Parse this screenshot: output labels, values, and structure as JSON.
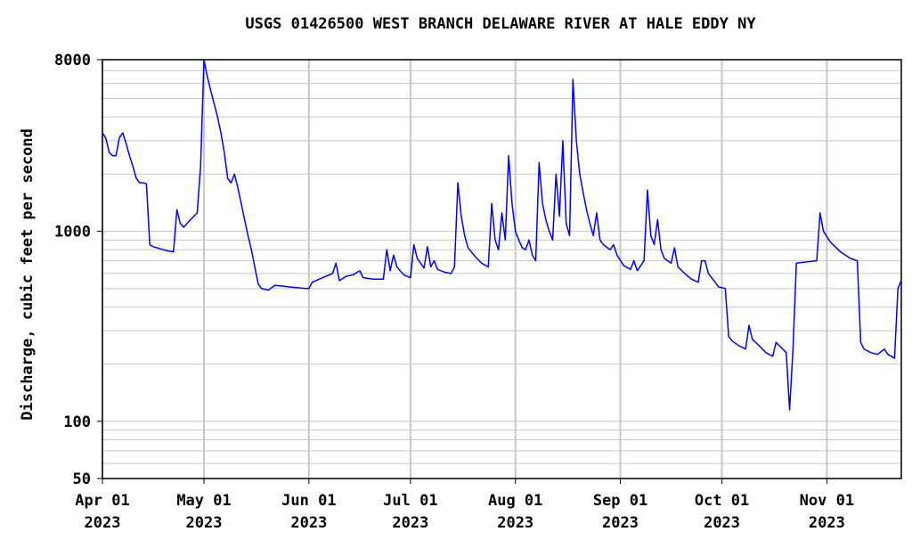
{
  "chart_data": {
    "type": "line",
    "title": "USGS 01426500 WEST BRANCH DELAWARE RIVER AT HALE EDDY NY",
    "y_label": "Discharge, cubic feet per second",
    "log_y": true,
    "grid": true,
    "ylim": [
      50,
      8000
    ],
    "yticks": [
      50,
      100,
      1000,
      8000
    ],
    "y_minor_ticks": [
      60,
      70,
      80,
      90,
      200,
      300,
      400,
      500,
      600,
      700,
      800,
      900,
      2000,
      3000,
      4000,
      5000,
      6000,
      7000
    ],
    "xlim": [
      "2023-04-01",
      "2023-11-23"
    ],
    "xticks": [
      {
        "value": "2023-04-01",
        "label": [
          "Apr 01",
          "2023"
        ]
      },
      {
        "value": "2023-05-01",
        "label": [
          "May 01",
          "2023"
        ]
      },
      {
        "value": "2023-06-01",
        "label": [
          "Jun 01",
          "2023"
        ]
      },
      {
        "value": "2023-07-01",
        "label": [
          "Jul 01",
          "2023"
        ]
      },
      {
        "value": "2023-08-01",
        "label": [
          "Aug 01",
          "2023"
        ]
      },
      {
        "value": "2023-09-01",
        "label": [
          "Sep 01",
          "2023"
        ]
      },
      {
        "value": "2023-10-01",
        "label": [
          "Oct 01",
          "2023"
        ]
      },
      {
        "value": "2023-11-01",
        "label": [
          "Nov 01",
          "2023"
        ]
      }
    ],
    "x": [
      "2023-04-01",
      "2023-04-02",
      "2023-04-03",
      "2023-04-04",
      "2023-04-05",
      "2023-04-06",
      "2023-04-07",
      "2023-04-08",
      "2023-04-09",
      "2023-04-10",
      "2023-04-11",
      "2023-04-12",
      "2023-04-13",
      "2023-04-14",
      "2023-04-15",
      "2023-04-16",
      "2023-04-18",
      "2023-04-20",
      "2023-04-22",
      "2023-04-23",
      "2023-04-24",
      "2023-04-25",
      "2023-04-27",
      "2023-04-29",
      "2023-04-30",
      "2023-05-01",
      "2023-05-02",
      "2023-05-03",
      "2023-05-04",
      "2023-05-05",
      "2023-05-06",
      "2023-05-07",
      "2023-05-08",
      "2023-05-09",
      "2023-05-10",
      "2023-05-11",
      "2023-05-12",
      "2023-05-13",
      "2023-05-14",
      "2023-05-15",
      "2023-05-16",
      "2023-05-17",
      "2023-05-18",
      "2023-05-20",
      "2023-05-22",
      "2023-05-26",
      "2023-05-31",
      "2023-06-01",
      "2023-06-02",
      "2023-06-04",
      "2023-06-06",
      "2023-06-08",
      "2023-06-09",
      "2023-06-10",
      "2023-06-12",
      "2023-06-14",
      "2023-06-16",
      "2023-06-17",
      "2023-06-20",
      "2023-06-23",
      "2023-06-24",
      "2023-06-25",
      "2023-06-26",
      "2023-06-27",
      "2023-06-29",
      "2023-07-01",
      "2023-07-02",
      "2023-07-03",
      "2023-07-04",
      "2023-07-05",
      "2023-07-06",
      "2023-07-07",
      "2023-07-08",
      "2023-07-09",
      "2023-07-11",
      "2023-07-13",
      "2023-07-14",
      "2023-07-15",
      "2023-07-16",
      "2023-07-17",
      "2023-07-18",
      "2023-07-20",
      "2023-07-22",
      "2023-07-24",
      "2023-07-25",
      "2023-07-26",
      "2023-07-27",
      "2023-07-28",
      "2023-07-29",
      "2023-07-30",
      "2023-07-31",
      "2023-08-01",
      "2023-08-02",
      "2023-08-03",
      "2023-08-04",
      "2023-08-05",
      "2023-08-06",
      "2023-08-07",
      "2023-08-08",
      "2023-08-09",
      "2023-08-10",
      "2023-08-11",
      "2023-08-12",
      "2023-08-13",
      "2023-08-14",
      "2023-08-15",
      "2023-08-16",
      "2023-08-17",
      "2023-08-18",
      "2023-08-19",
      "2023-08-20",
      "2023-08-21",
      "2023-08-22",
      "2023-08-23",
      "2023-08-24",
      "2023-08-25",
      "2023-08-26",
      "2023-08-27",
      "2023-08-29",
      "2023-08-30",
      "2023-08-31",
      "2023-09-02",
      "2023-09-04",
      "2023-09-05",
      "2023-09-06",
      "2023-09-08",
      "2023-09-09",
      "2023-09-10",
      "2023-09-11",
      "2023-09-12",
      "2023-09-13",
      "2023-09-14",
      "2023-09-16",
      "2023-09-17",
      "2023-09-18",
      "2023-09-20",
      "2023-09-22",
      "2023-09-24",
      "2023-09-25",
      "2023-09-26",
      "2023-09-27",
      "2023-09-29",
      "2023-09-30",
      "2023-10-02",
      "2023-10-03",
      "2023-10-04",
      "2023-10-06",
      "2023-10-08",
      "2023-10-09",
      "2023-10-10",
      "2023-10-12",
      "2023-10-14",
      "2023-10-16",
      "2023-10-17",
      "2023-10-19",
      "2023-10-20",
      "2023-10-21",
      "2023-10-22",
      "2023-10-23",
      "2023-10-26",
      "2023-10-29",
      "2023-10-30",
      "2023-10-31",
      "2023-11-02",
      "2023-11-05",
      "2023-11-08",
      "2023-11-10",
      "2023-11-11",
      "2023-11-12",
      "2023-11-14",
      "2023-11-16",
      "2023-11-18",
      "2023-11-19",
      "2023-11-21",
      "2023-11-22",
      "2023-11-23"
    ],
    "series": [
      {
        "color": "#0000ff",
        "values": [
          3300,
          3100,
          2600,
          2500,
          2500,
          3100,
          3300,
          2900,
          2500,
          2200,
          1900,
          1800,
          1800,
          1780,
          850,
          830,
          810,
          790,
          780,
          1300,
          1100,
          1050,
          1150,
          1250,
          2200,
          8000,
          6500,
          5500,
          4700,
          4000,
          3300,
          2600,
          1900,
          1800,
          2000,
          1700,
          1400,
          1150,
          950,
          800,
          650,
          530,
          500,
          490,
          520,
          510,
          500,
          500,
          540,
          560,
          580,
          600,
          680,
          550,
          580,
          590,
          620,
          570,
          560,
          560,
          800,
          620,
          750,
          650,
          590,
          570,
          850,
          720,
          680,
          640,
          830,
          650,
          700,
          630,
          610,
          600,
          650,
          1800,
          1200,
          950,
          820,
          740,
          680,
          650,
          1400,
          900,
          800,
          1250,
          900,
          2500,
          1400,
          1000,
          900,
          820,
          800,
          900,
          750,
          700,
          2300,
          1400,
          1150,
          1000,
          900,
          2000,
          1200,
          3000,
          1100,
          950,
          6300,
          3000,
          2000,
          1600,
          1300,
          1100,
          950,
          1250,
          900,
          850,
          800,
          850,
          750,
          660,
          630,
          700,
          620,
          700,
          1650,
          950,
          850,
          1150,
          800,
          720,
          680,
          820,
          650,
          600,
          560,
          540,
          700,
          700,
          600,
          540,
          510,
          500,
          280,
          265,
          250,
          240,
          320,
          270,
          250,
          230,
          220,
          260,
          240,
          230,
          115,
          240,
          680,
          690,
          700,
          1250,
          1000,
          880,
          780,
          720,
          700,
          260,
          240,
          230,
          225,
          240,
          225,
          215,
          500,
          550
        ]
      }
    ]
  }
}
